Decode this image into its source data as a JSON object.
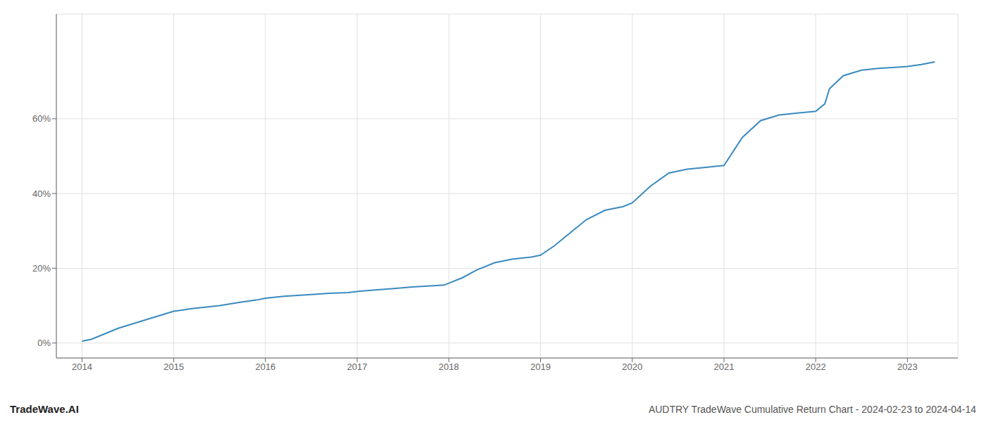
{
  "chart_data": {
    "type": "line",
    "title": "AUDTRY TradeWave Cumulative Return Chart - 2024-02-23 to 2024-04-14",
    "annotations": [
      "TradeWave.AI"
    ],
    "color": "#3a8abf",
    "grid": true,
    "x": [
      2014.0,
      2014.1,
      2014.25,
      2014.4,
      2014.6,
      2014.8,
      2015.0,
      2015.2,
      2015.5,
      2015.7,
      2015.9,
      2016.0,
      2016.2,
      2016.5,
      2016.7,
      2016.9,
      2017.0,
      2017.2,
      2017.4,
      2017.6,
      2017.8,
      2017.95,
      2018.0,
      2018.15,
      2018.3,
      2018.5,
      2018.7,
      2018.9,
      2019.0,
      2019.15,
      2019.3,
      2019.5,
      2019.7,
      2019.9,
      2020.0,
      2020.2,
      2020.4,
      2020.6,
      2020.8,
      2021.0,
      2021.2,
      2021.4,
      2021.6,
      2021.8,
      2022.0,
      2022.1,
      2022.15,
      2022.3,
      2022.5,
      2022.7,
      2022.9,
      2023.0,
      2023.15,
      2023.3
    ],
    "values": [
      0.5,
      1.0,
      2.5,
      4.0,
      5.5,
      7.0,
      8.5,
      9.2,
      10.0,
      10.8,
      11.5,
      12.0,
      12.5,
      13.0,
      13.3,
      13.5,
      13.8,
      14.2,
      14.6,
      15.0,
      15.3,
      15.5,
      16.0,
      17.5,
      19.5,
      21.5,
      22.5,
      23.0,
      23.5,
      26.0,
      29.0,
      33.0,
      35.5,
      36.5,
      37.5,
      42.0,
      45.5,
      46.5,
      47.0,
      47.5,
      55.0,
      59.5,
      61.0,
      61.5,
      62.0,
      64.0,
      68.0,
      71.5,
      73.0,
      73.5,
      73.8,
      74.0,
      74.5,
      75.2
    ],
    "xlim": [
      2013.72,
      2023.55
    ],
    "ylim": [
      -4,
      88
    ],
    "xticks": [
      2014,
      2015,
      2016,
      2017,
      2018,
      2019,
      2020,
      2021,
      2022,
      2023
    ],
    "yticks": [
      {
        "value": 0,
        "label": "0%"
      },
      {
        "value": 20,
        "label": "20%"
      },
      {
        "value": 40,
        "label": "40%"
      },
      {
        "value": 60,
        "label": "60%"
      }
    ]
  }
}
